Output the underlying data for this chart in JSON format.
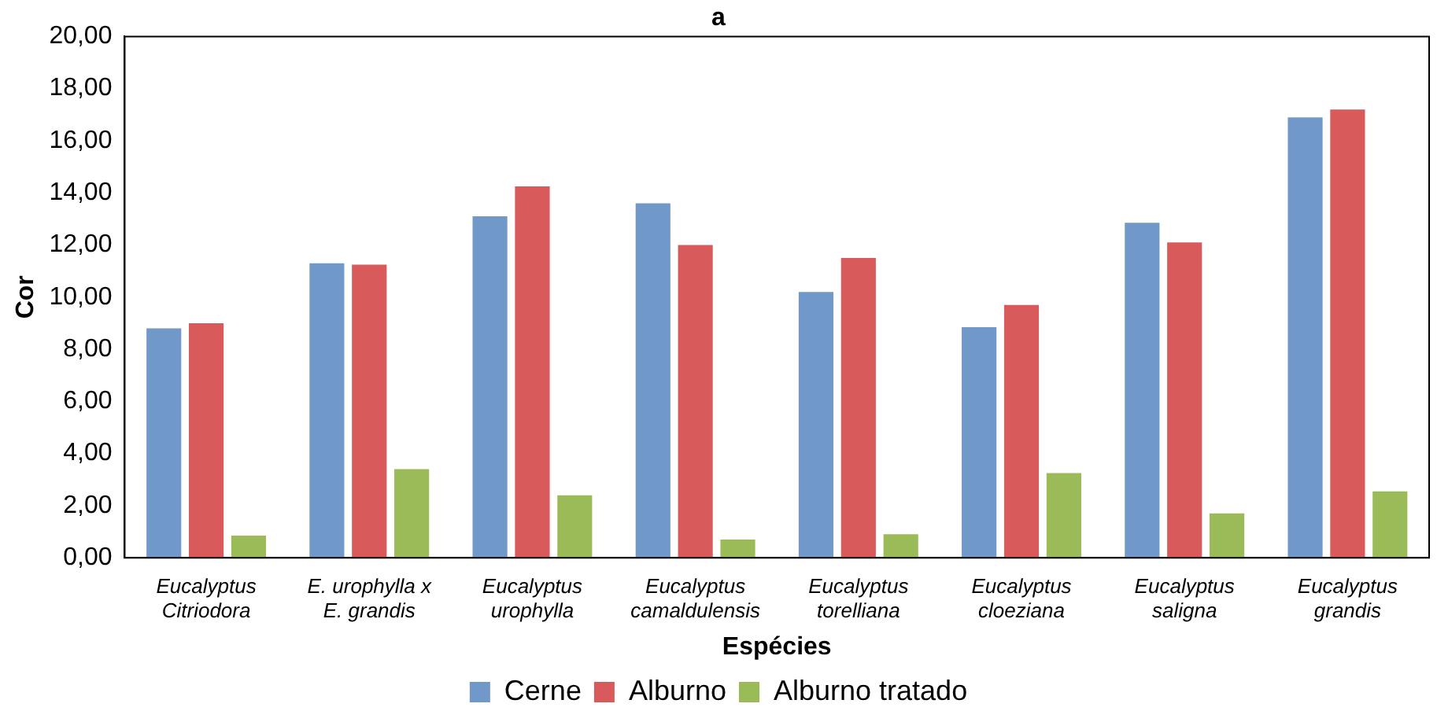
{
  "chart_data": {
    "type": "bar",
    "title": "a",
    "xlabel": "Espécies",
    "ylabel": "Cor",
    "categories": [
      "Eucalyptus Citriodora",
      "E. urophylla x E. grandis",
      "Eucalyptus urophylla",
      "Eucalyptus camaldulensis",
      "Eucalyptus torelliana",
      "Eucalyptus cloeziana",
      "Eucalyptus saligna",
      "Eucalyptus grandis"
    ],
    "series": [
      {
        "name": "Cerne",
        "color": "#7099c9",
        "values": [
          8.8,
          11.3,
          13.1,
          13.6,
          10.2,
          8.85,
          12.85,
          16.9
        ]
      },
      {
        "name": "Alburno",
        "color": "#d95a5a",
        "values": [
          9.0,
          11.25,
          14.25,
          12.0,
          11.5,
          9.7,
          12.1,
          17.2
        ]
      },
      {
        "name": "Alburno tratado",
        "color": "#9bbb59",
        "values": [
          0.85,
          3.4,
          2.4,
          0.7,
          0.9,
          3.25,
          1.7,
          2.55
        ]
      }
    ],
    "ylim": [
      0,
      20
    ],
    "yticks": [
      {
        "value": 0,
        "label": "0,00"
      },
      {
        "value": 2,
        "label": "2,00"
      },
      {
        "value": 4,
        "label": "4,00"
      },
      {
        "value": 6,
        "label": "6,00"
      },
      {
        "value": 8,
        "label": "8,00"
      },
      {
        "value": 10,
        "label": "10,00"
      },
      {
        "value": 12,
        "label": "12,00"
      },
      {
        "value": 14,
        "label": "14,00"
      },
      {
        "value": 16,
        "label": "16,00"
      },
      {
        "value": 18,
        "label": "18,00"
      },
      {
        "value": 20,
        "label": "20,00"
      }
    ],
    "grid": false,
    "legend": "bottom"
  }
}
